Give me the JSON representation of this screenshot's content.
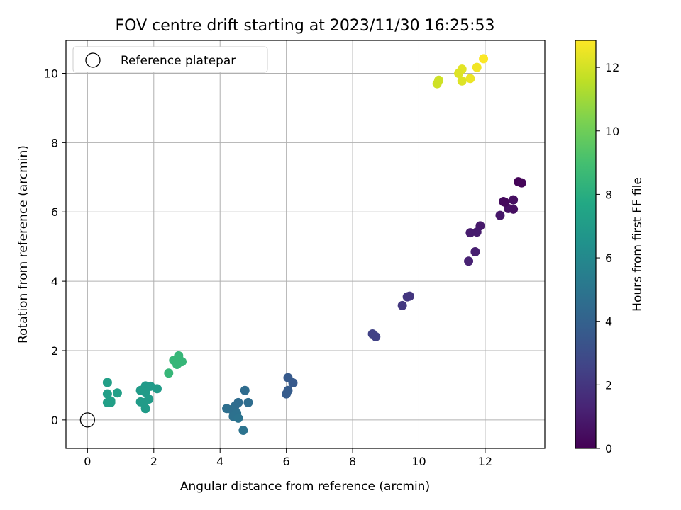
{
  "chart_data": {
    "type": "scatter",
    "title": "FOV centre drift starting at 2023/11/30 16:25:53",
    "xlabel": "Angular distance from reference (arcmin)",
    "ylabel": "Rotation from reference (arcmin)",
    "xlim": [
      -0.65,
      13.8
    ],
    "ylim": [
      -0.82,
      10.95
    ],
    "xticks": [
      0,
      2,
      4,
      6,
      8,
      10,
      12
    ],
    "yticks": [
      0,
      2,
      4,
      6,
      8,
      10
    ],
    "grid": true,
    "legend": {
      "placement": "upper-left",
      "entries": [
        "Reference platepar"
      ]
    },
    "reference_point": {
      "x": 0,
      "y": 0,
      "marker": "open-circle",
      "label": "Reference platepar"
    },
    "colorbar": {
      "label": "Hours from first FF file",
      "colormap": "viridis",
      "range": [
        0,
        12.85
      ],
      "ticks": [
        0,
        2,
        4,
        6,
        8,
        10,
        12
      ]
    },
    "series": [
      {
        "points": [
          {
            "x": 13.0,
            "y": 6.87,
            "c": 0.1
          },
          {
            "x": 13.1,
            "y": 6.84,
            "c": 0.2
          },
          {
            "x": 12.55,
            "y": 6.3,
            "c": 0.4
          },
          {
            "x": 12.85,
            "y": 6.35,
            "c": 0.5
          },
          {
            "x": 12.7,
            "y": 6.1,
            "c": 0.6
          },
          {
            "x": 12.85,
            "y": 6.08,
            "c": 0.5
          },
          {
            "x": 12.6,
            "y": 6.28,
            "c": 0.3
          },
          {
            "x": 12.45,
            "y": 5.9,
            "c": 0.8
          },
          {
            "x": 11.85,
            "y": 5.6,
            "c": 0.9
          },
          {
            "x": 11.55,
            "y": 5.4,
            "c": 1.0
          },
          {
            "x": 11.75,
            "y": 5.42,
            "c": 1.0
          },
          {
            "x": 11.7,
            "y": 4.85,
            "c": 1.1
          },
          {
            "x": 11.5,
            "y": 4.58,
            "c": 1.2
          },
          {
            "x": 9.65,
            "y": 3.55,
            "c": 2.0
          },
          {
            "x": 9.72,
            "y": 3.57,
            "c": 2.0
          },
          {
            "x": 9.5,
            "y": 3.3,
            "c": 2.1
          },
          {
            "x": 8.6,
            "y": 2.48,
            "c": 2.5
          },
          {
            "x": 8.7,
            "y": 2.4,
            "c": 2.5
          },
          {
            "x": 6.05,
            "y": 1.22,
            "c": 3.6
          },
          {
            "x": 6.2,
            "y": 1.07,
            "c": 3.6
          },
          {
            "x": 6.05,
            "y": 0.85,
            "c": 3.7
          },
          {
            "x": 6.0,
            "y": 0.75,
            "c": 3.7
          },
          {
            "x": 4.75,
            "y": 0.85,
            "c": 4.5
          },
          {
            "x": 4.55,
            "y": 0.5,
            "c": 4.5
          },
          {
            "x": 4.85,
            "y": 0.5,
            "c": 4.6
          },
          {
            "x": 4.45,
            "y": 0.4,
            "c": 4.6
          },
          {
            "x": 4.2,
            "y": 0.33,
            "c": 4.7
          },
          {
            "x": 4.35,
            "y": 0.3,
            "c": 4.7
          },
          {
            "x": 4.5,
            "y": 0.2,
            "c": 4.8
          },
          {
            "x": 4.4,
            "y": 0.1,
            "c": 4.8
          },
          {
            "x": 4.55,
            "y": 0.05,
            "c": 4.9
          },
          {
            "x": 4.7,
            "y": -0.3,
            "c": 4.9
          },
          {
            "x": 1.75,
            "y": 0.98,
            "c": 6.9
          },
          {
            "x": 1.9,
            "y": 0.97,
            "c": 6.9
          },
          {
            "x": 2.1,
            "y": 0.9,
            "c": 7.0
          },
          {
            "x": 1.6,
            "y": 0.85,
            "c": 7.0
          },
          {
            "x": 1.75,
            "y": 0.8,
            "c": 7.0
          },
          {
            "x": 1.85,
            "y": 0.6,
            "c": 7.0
          },
          {
            "x": 1.6,
            "y": 0.52,
            "c": 7.0
          },
          {
            "x": 1.7,
            "y": 0.5,
            "c": 7.0
          },
          {
            "x": 1.75,
            "y": 0.33,
            "c": 7.0
          },
          {
            "x": 0.6,
            "y": 1.08,
            "c": 7.2
          },
          {
            "x": 0.9,
            "y": 0.78,
            "c": 7.2
          },
          {
            "x": 0.6,
            "y": 0.75,
            "c": 7.2
          },
          {
            "x": 0.7,
            "y": 0.55,
            "c": 7.2
          },
          {
            "x": 0.6,
            "y": 0.5,
            "c": 7.2
          },
          {
            "x": 0.7,
            "y": 0.5,
            "c": 7.2
          },
          {
            "x": 2.75,
            "y": 1.85,
            "c": 8.5
          },
          {
            "x": 2.6,
            "y": 1.72,
            "c": 8.5
          },
          {
            "x": 2.85,
            "y": 1.68,
            "c": 8.5
          },
          {
            "x": 2.75,
            "y": 1.65,
            "c": 8.5
          },
          {
            "x": 2.7,
            "y": 1.6,
            "c": 8.5
          },
          {
            "x": 2.45,
            "y": 1.35,
            "c": 8.5
          },
          {
            "x": 11.3,
            "y": 10.12,
            "c": 12.3
          },
          {
            "x": 11.95,
            "y": 10.42,
            "c": 12.8
          },
          {
            "x": 11.75,
            "y": 10.17,
            "c": 12.6
          },
          {
            "x": 11.2,
            "y": 10.0,
            "c": 12.2
          },
          {
            "x": 11.55,
            "y": 9.85,
            "c": 12.5
          },
          {
            "x": 11.3,
            "y": 9.78,
            "c": 12.2
          },
          {
            "x": 10.6,
            "y": 9.8,
            "c": 11.9
          },
          {
            "x": 10.55,
            "y": 9.7,
            "c": 11.9
          }
        ]
      }
    ]
  }
}
